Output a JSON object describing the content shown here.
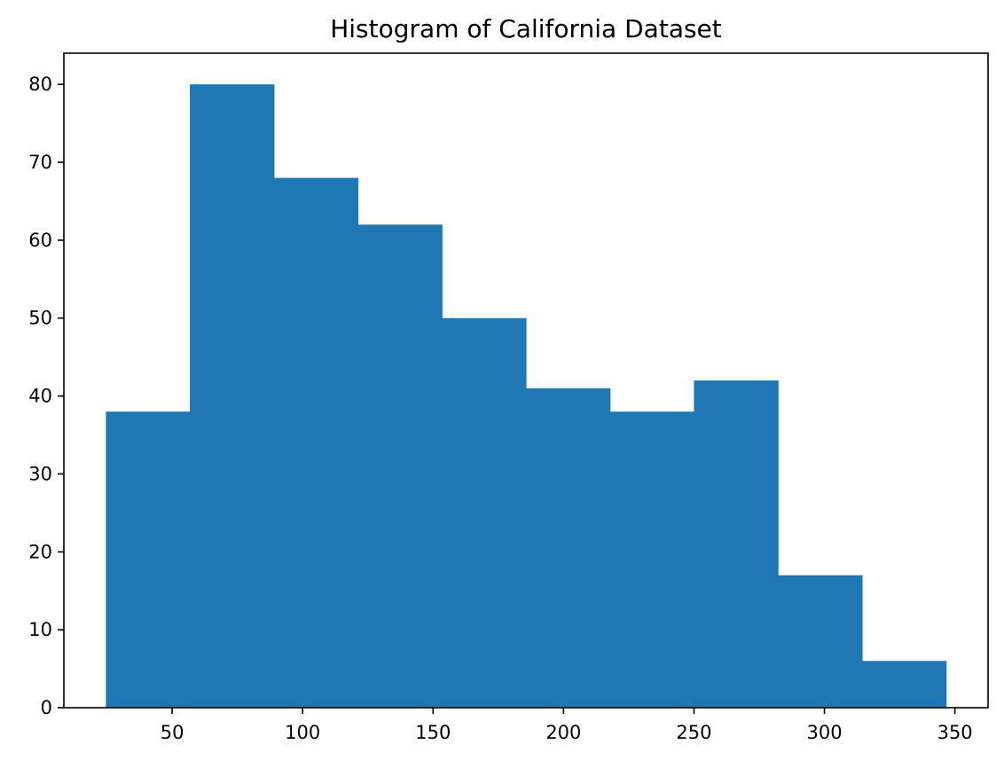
{
  "chart_data": {
    "type": "bar",
    "title": "Histogram of California Dataset",
    "xlabel": "",
    "ylabel": "",
    "bin_edges": [
      24.6,
      56.8,
      89.0,
      121.2,
      153.4,
      185.6,
      217.8,
      250.0,
      282.2,
      314.4,
      346.6
    ],
    "values": [
      38,
      80,
      68,
      62,
      50,
      41,
      38,
      42,
      17,
      6
    ],
    "xlim": [
      8.5,
      362.7
    ],
    "ylim": [
      0,
      84
    ],
    "x_ticks": [
      50,
      100,
      150,
      200,
      250,
      300,
      350
    ],
    "y_ticks": [
      0,
      10,
      20,
      30,
      40,
      50,
      60,
      70,
      80
    ],
    "bar_color": "#1f77b4",
    "grid": false,
    "legend": "none"
  }
}
